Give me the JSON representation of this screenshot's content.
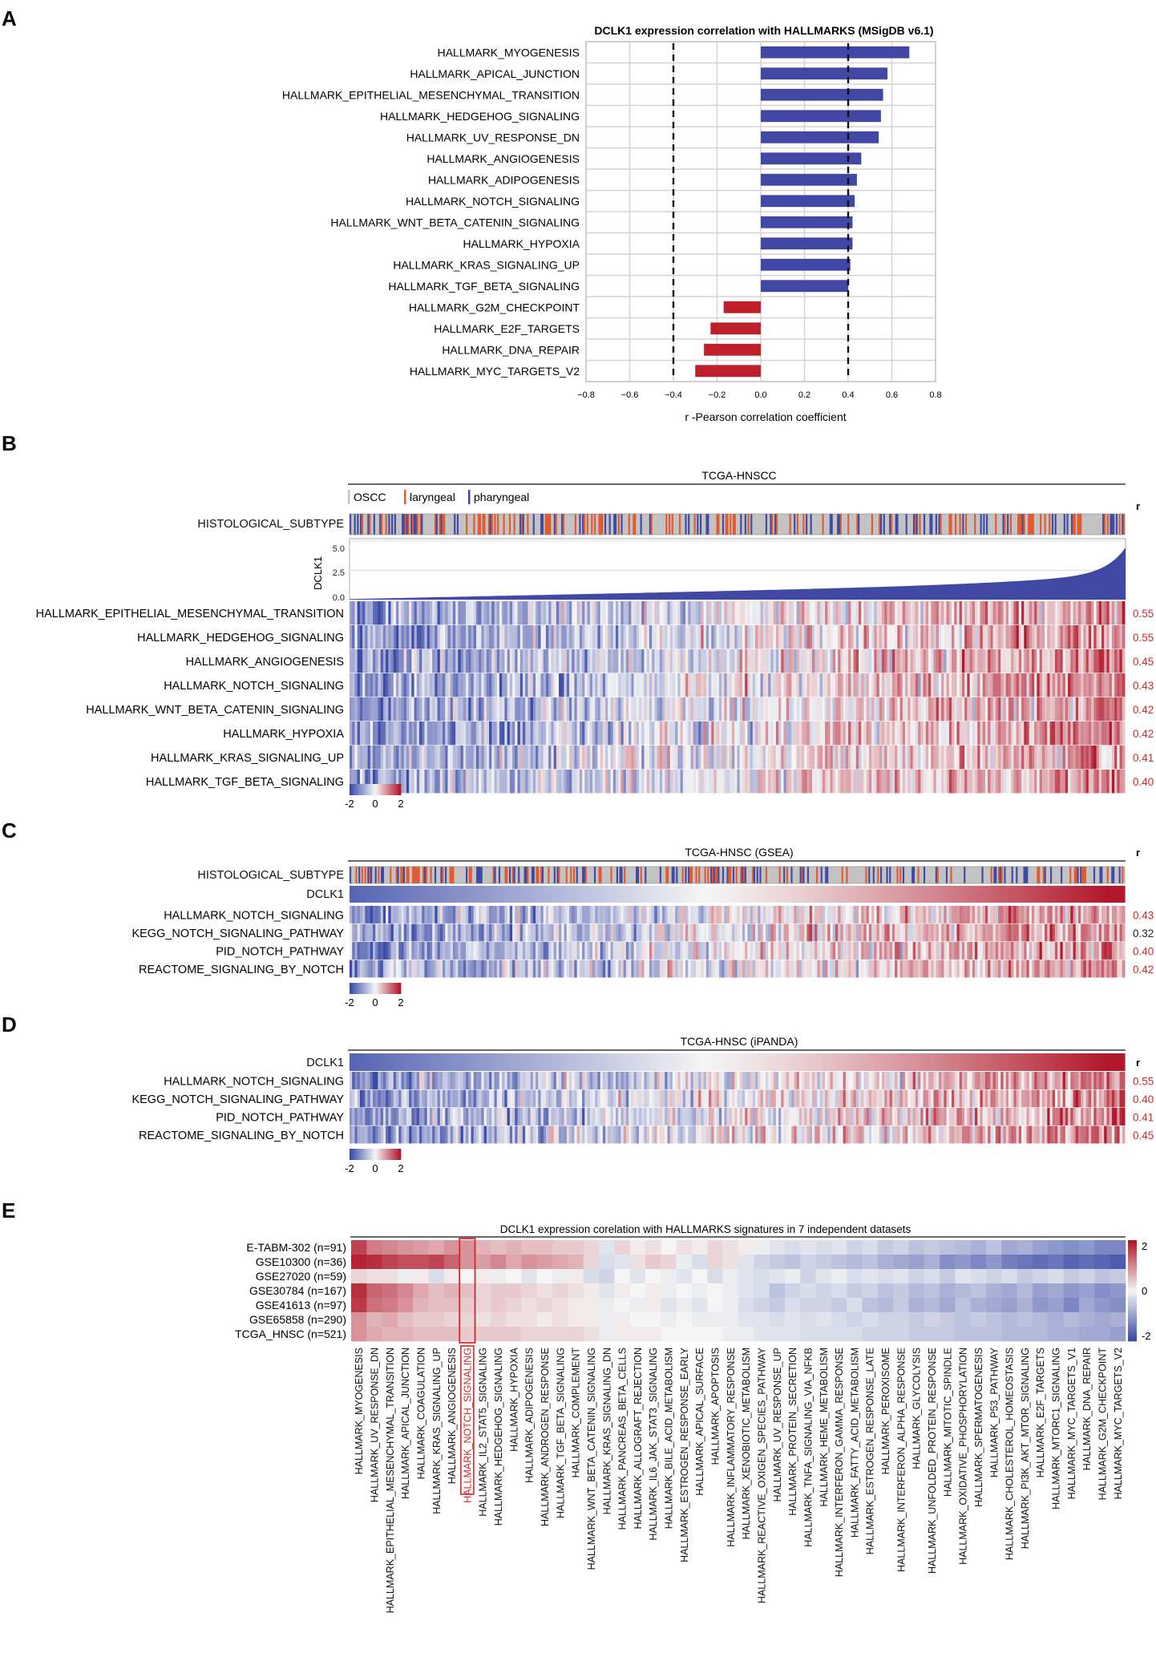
{
  "colors": {
    "positive_bar": "#4148a3",
    "negative_bar": "#bf1f2a",
    "heat_low": "#3b4ba8",
    "heat_mid": "#f5f5f5",
    "heat_high": "#b2182b",
    "oscc": "#c3c3c3",
    "laryngeal": "#e35a2e",
    "pharyngeal": "#3f4aa5",
    "r_red": "#d62728",
    "r_black": "#222222",
    "highlight_box": "#d62728"
  },
  "chart_data": [
    {
      "panel": "A",
      "type": "bar",
      "orientation": "horizontal",
      "title": "DCLK1 expression correlation with HALLMARKS (MSigDB v6.1)",
      "xlabel": "r -Pearson correlation coefficient",
      "xlim": [
        -0.8,
        0.8
      ],
      "xticks": [
        -0.8,
        -0.6,
        -0.4,
        -0.2,
        0.0,
        0.2,
        0.4,
        0.6,
        0.8
      ],
      "xtick_labels": [
        "−0.8",
        "−0.6",
        "−0.4",
        "−0.2",
        "0.0",
        "0.2",
        "0.4",
        "0.6",
        "0.8"
      ],
      "reference_lines": [
        -0.4,
        0.4
      ],
      "grid": true,
      "categories": [
        "HALLMARK_MYOGENESIS",
        "HALLMARK_APICAL_JUNCTION",
        "HALLMARK_EPITHELIAL_MESENCHYMAL_TRANSITION",
        "HALLMARK_HEDGEHOG_SIGNALING",
        "HALLMARK_UV_RESPONSE_DN",
        "HALLMARK_ANGIOGENESIS",
        "HALLMARK_ADIPOGENESIS",
        "HALLMARK_NOTCH_SIGNALING",
        "HALLMARK_WNT_BETA_CATENIN_SIGNALING",
        "HALLMARK_HYPOXIA",
        "HALLMARK_KRAS_SIGNALING_UP",
        "HALLMARK_TGF_BETA_SIGNALING",
        "HALLMARK_G2M_CHECKPOINT",
        "HALLMARK_E2F_TARGETS",
        "HALLMARK_DNA_REPAIR",
        "HALLMARK_MYC_TARGETS_V2"
      ],
      "values": [
        0.68,
        0.58,
        0.56,
        0.55,
        0.54,
        0.46,
        0.44,
        0.43,
        0.42,
        0.42,
        0.41,
        0.4,
        -0.17,
        -0.23,
        -0.26,
        -0.3
      ]
    },
    {
      "panel": "B",
      "type": "heatmap",
      "title": "TCGA-HNSCC",
      "legend": [
        "OSCC",
        "laryngeal",
        "pharyngeal"
      ],
      "annotation_label": "HISTOLOGICAL_SUBTYPE",
      "area_label": "DCLK1",
      "area_yticks": [
        "5.0",
        "2.5",
        "0.0"
      ],
      "area_ylim": [
        0,
        5.2
      ],
      "r_header": "r",
      "rows": [
        "HALLMARK_EPITHELIAL_MESENCHYMAL_TRANSITION",
        "HALLMARK_HEDGEHOG_SIGNALING",
        "HALLMARK_ANGIOGENESIS",
        "HALLMARK_NOTCH_SIGNALING",
        "HALLMARK_WNT_BETA_CATENIN_SIGNALING",
        "HALLMARK_HYPOXIA",
        "HALLMARK_KRAS_SIGNALING_UP",
        "HALLMARK_TGF_BETA_SIGNALING"
      ],
      "r_values": [
        "0.55",
        "0.55",
        "0.45",
        "0.43",
        "0.42",
        "0.42",
        "0.41",
        "0.40"
      ],
      "colorbar": [
        "-2",
        "0",
        "2"
      ]
    },
    {
      "panel": "C",
      "type": "heatmap",
      "title": "TCGA-HNSC (GSEA)",
      "annotation_label": "HISTOLOGICAL_SUBTYPE",
      "gradient_label": "DCLK1",
      "r_header": "r",
      "rows": [
        "HALLMARK_NOTCH_SIGNALING",
        "KEGG_NOTCH_SIGNALING_PATHWAY",
        "PID_NOTCH_PATHWAY",
        "REACTOME_SIGNALING_BY_NOTCH"
      ],
      "r_values": [
        "0.43",
        "0.32",
        "0.40",
        "0.42"
      ],
      "r_highlight": [
        true,
        false,
        true,
        true
      ],
      "colorbar": [
        "-2",
        "0",
        "2"
      ]
    },
    {
      "panel": "D",
      "type": "heatmap",
      "title": "TCGA-HNSC (iPANDA)",
      "gradient_label": "DCLK1",
      "r_header": "r",
      "rows": [
        "HALLMARK_NOTCH_SIGNALING",
        "KEGG_NOTCH_SIGNALING_PATHWAY",
        "PID_NOTCH_PATHWAY",
        "REACTOME_SIGNALING_BY_NOTCH"
      ],
      "r_values": [
        "0.55",
        "0.40",
        "0.41",
        "0.45"
      ],
      "colorbar": [
        "-2",
        "0",
        "2"
      ]
    },
    {
      "panel": "E",
      "type": "heatmap",
      "title": "DCLK1 expression corelation with HALLMARKS signatures in 7 independent datasets",
      "rows": [
        "E-TABM-302 (n=91)",
        "GSE10300 (n=36)",
        "GSE27020 (n=59)",
        "GSE30784 (n=167)",
        "GSE41613 (n=97)",
        "GSE65858 (n=290)",
        "TCGA_HNSC (n=521)"
      ],
      "columns": [
        "HALLMARK_MYOGENESIS",
        "HALLMARK_UV_RESPONSE_DN",
        "HALLMARK_EPITHELIAL_MESENCHYMAL_TRANSITION",
        "HALLMARK_APICAL_JUNCTION",
        "HALLMARK_COAGULATION",
        "HALLMARK_KRAS_SIGNALING_UP",
        "HALLMARK_ANGIOGENESIS",
        "HALLMARK_NOTCH_SIGNALING",
        "HALLMARK_IL2_STAT5_SIGNALING",
        "HALLMARK_HEDGEHOG_SIGNALING",
        "HALLMARK_HYPOXIA",
        "HALLMARK_ADIPOGENESIS",
        "HALLMARK_ANDROGEN_RESPONSE",
        "HALLMARK_TGF_BETA_SIGNALING",
        "HALLMARK_COMPLEMENT",
        "HALLMARK_WNT_BETA_CATENIN_SIGNALING",
        "HALLMARK_KRAS_SIGNALING_DN",
        "HALLMARK_PANCREAS_BETA_CELLS",
        "HALLMARK_ALLOGRAFT_REJECTION",
        "HALLMARK_IL6_JAK_STAT3_SIGNALING",
        "HALLMARK_BILE_ACID_METABOLISM",
        "HALLMARK_ESTROGEN_RESPONSE_EARLY",
        "HALLMARK_APICAL_SURFACE",
        "HALLMARK_APOPTOSIS",
        "HALLMARK_INFLAMMATORY_RESPONSE",
        "HALLMARK_XENOBIOTIC_METABOLISM",
        "HALLMARK_REACTIVE_OXIGEN_SPECIES_PATHWAY",
        "HALLMARK_UV_RESPONSE_UP",
        "HALLMARK_PROTEIN_SECRETION",
        "HALLMARK_TNFA_SIGNALING_VIA_NFKB",
        "HALLMARK_HEME_METABOLISM",
        "HALLMARK_INTERFERON_GAMMA_RESPONSE",
        "HALLMARK_FATTY_ACID_METABOLISM",
        "HALLMARK_ESTROGEN_RESPONSE_LATE",
        "HALLMARK_PEROXISOME",
        "HALLMARK_INTERFERON_ALPHA_RESPONSE",
        "HALLMARK_GLYCOLYSIS",
        "HALLMARK_UNFOLDED_PROTEIN_RESPONSE",
        "HALLMARK_MITOTIC_SPINDLE",
        "HALLMARK_OXIDATIVE_PHOSPHORYLATION",
        "HALLMARK_SPERMATOGENESIS",
        "HALLMARK_P53_PATHWAY",
        "HALLMARK_CHOLESTEROL_HOMEOSTASIS",
        "HALLMARK_PI3K_AKT_MTOR_SIGNALING",
        "HALLMARK_E2F_TARGETS",
        "HALLMARK_MTORC1_SIGNALING",
        "HALLMARK_MYC_TARGETS_V1",
        "HALLMARK_DNA_REPAIR",
        "HALLMARK_G2M_CHECKPOINT",
        "HALLMARK_MYC_TARGETS_V2"
      ],
      "highlight_column": "HALLMARK_NOTCH_SIGNALING",
      "colorbar": [
        "2",
        "0",
        "-2"
      ],
      "values": [
        [
          1.6,
          1.1,
          1.0,
          0.9,
          0.8,
          0.7,
          0.9,
          0.9,
          0.6,
          0.5,
          0.6,
          0.5,
          0.5,
          0.4,
          0.4,
          0.3,
          -0.2,
          0.3,
          0.1,
          0.2,
          0.0,
          0.2,
          0.1,
          0.3,
          0.2,
          0.1,
          -0.1,
          -0.2,
          -0.3,
          -0.2,
          -0.3,
          -0.2,
          -0.4,
          -0.3,
          -0.5,
          -0.4,
          -0.6,
          -0.5,
          -0.6,
          -0.7,
          -0.8,
          -0.6,
          -0.9,
          -0.8,
          -1.0,
          -1.1,
          -1.2,
          -1.1,
          -1.3,
          -1.3
        ],
        [
          1.9,
          1.8,
          1.6,
          1.5,
          1.5,
          1.6,
          1.3,
          0.9,
          0.8,
          1.0,
          0.7,
          0.9,
          0.8,
          0.7,
          0.6,
          0.3,
          -0.3,
          -0.2,
          0.2,
          0.4,
          0.3,
          -0.1,
          -0.3,
          0.3,
          0.2,
          -0.2,
          -0.4,
          -0.5,
          -0.6,
          -0.4,
          -0.5,
          -0.6,
          -0.7,
          -0.6,
          -0.8,
          -0.9,
          -1.0,
          -0.8,
          -1.2,
          -1.1,
          -1.3,
          -1.1,
          -1.4,
          -1.5,
          -1.6,
          -1.5,
          -1.7,
          -1.6,
          -1.7,
          -1.8
        ],
        [
          0.3,
          0.2,
          0.2,
          -0.1,
          0.1,
          -0.3,
          0.1,
          0.0,
          0.1,
          -0.1,
          0.0,
          -0.2,
          0.0,
          -0.1,
          0.1,
          -0.3,
          -0.4,
          0.0,
          -0.2,
          0.0,
          -0.1,
          -0.2,
          0.0,
          -0.3,
          -0.1,
          -0.2,
          -0.3,
          -0.2,
          -0.1,
          -0.4,
          -0.2,
          -0.1,
          -0.3,
          -0.2,
          -0.3,
          -0.2,
          -0.4,
          -0.3,
          -0.5,
          -0.2,
          -0.3,
          -0.4,
          -0.3,
          -0.5,
          -0.4,
          -0.3,
          -0.5,
          -0.4,
          -0.6,
          -0.5
        ],
        [
          1.8,
          1.3,
          1.2,
          1.0,
          0.7,
          0.5,
          0.6,
          0.5,
          0.3,
          0.4,
          0.4,
          0.3,
          0.2,
          0.3,
          0.2,
          0.1,
          -0.2,
          0.1,
          0.0,
          0.1,
          -0.1,
          0.0,
          -0.1,
          0.0,
          -0.1,
          -0.2,
          -0.3,
          -0.6,
          -0.4,
          -0.3,
          -0.4,
          -0.3,
          -0.5,
          -0.4,
          -0.6,
          -0.5,
          -0.7,
          -0.6,
          -0.8,
          -0.7,
          -0.6,
          -0.8,
          -0.9,
          -0.7,
          -1.0,
          -0.9,
          -1.1,
          -1.0,
          -1.2,
          -1.1
        ],
        [
          1.7,
          1.2,
          1.1,
          0.9,
          0.6,
          0.5,
          0.5,
          0.4,
          0.3,
          0.4,
          0.3,
          0.2,
          0.3,
          0.2,
          0.1,
          0.1,
          -0.1,
          0.0,
          -0.1,
          0.1,
          -0.2,
          -0.1,
          -0.2,
          0.0,
          -0.1,
          -0.3,
          -0.4,
          -0.5,
          -0.3,
          -0.4,
          -0.4,
          -0.5,
          -0.3,
          -0.6,
          -0.7,
          -0.5,
          -0.8,
          -0.7,
          -0.9,
          -0.6,
          -0.8,
          -0.9,
          -1.0,
          -0.8,
          -1.1,
          -1.0,
          -1.3,
          -0.9,
          -1.1,
          -1.2
        ],
        [
          0.9,
          0.6,
          0.7,
          0.5,
          0.4,
          0.4,
          0.3,
          0.3,
          0.2,
          0.3,
          0.2,
          0.2,
          0.1,
          0.2,
          0.1,
          0.1,
          -0.1,
          0.1,
          0.0,
          0.0,
          -0.1,
          0.0,
          -0.1,
          -0.1,
          -0.1,
          -0.2,
          -0.2,
          -0.3,
          -0.2,
          -0.3,
          -0.2,
          -0.3,
          -0.4,
          -0.3,
          -0.4,
          -0.4,
          -0.5,
          -0.4,
          -0.5,
          -0.6,
          -0.5,
          -0.6,
          -0.7,
          -0.6,
          -0.7,
          -0.8,
          -0.7,
          -0.8,
          -0.9,
          -0.8
        ],
        [
          0.9,
          0.7,
          0.6,
          0.6,
          0.5,
          0.5,
          0.5,
          0.4,
          0.4,
          0.4,
          0.4,
          0.3,
          0.3,
          0.3,
          0.3,
          0.2,
          -0.1,
          0.1,
          0.1,
          0.1,
          0.0,
          0.0,
          0.0,
          0.0,
          -0.1,
          -0.1,
          -0.2,
          -0.2,
          -0.2,
          -0.3,
          -0.3,
          -0.3,
          -0.3,
          -0.4,
          -0.4,
          -0.4,
          -0.5,
          -0.5,
          -0.5,
          -0.6,
          -0.6,
          -0.6,
          -0.7,
          -0.7,
          -0.7,
          -0.8,
          -0.8,
          -0.9,
          -0.9,
          -1.0
        ]
      ]
    }
  ],
  "panels": {
    "a_label": "A",
    "b_label": "B",
    "c_label": "C",
    "d_label": "D",
    "e_label": "E"
  }
}
